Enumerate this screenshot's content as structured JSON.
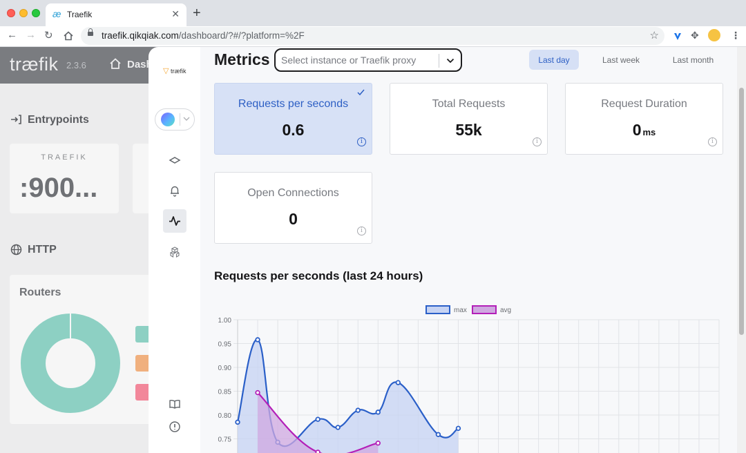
{
  "browser": {
    "tab_title": "Traefik",
    "url_host": "traefik.qikqiak.com",
    "url_path": "/dashboard/?#/?platform=%2F"
  },
  "background": {
    "logo": "træfik",
    "version": "2.3.6",
    "nav_label": "Dash",
    "entrypoints_label": "Entrypoints",
    "entry_card_title": "TRAEFIK",
    "entry_card_value": ":900...",
    "http_label": "HTTP",
    "routers_label": "Routers"
  },
  "metrics": {
    "title": "Metrics",
    "select_placeholder": "Select instance or Traefik proxy",
    "periods": [
      "Last day",
      "Last week",
      "Last month"
    ],
    "active_period": "Last day",
    "cards": [
      {
        "label": "Requests per seconds",
        "value": "0.6",
        "unit": ""
      },
      {
        "label": "Total Requests",
        "value": "55k",
        "unit": ""
      },
      {
        "label": "Request Duration",
        "value": "0",
        "unit": "ms"
      },
      {
        "label": "Open Connections",
        "value": "0",
        "unit": ""
      }
    ],
    "chart_title": "Requests per seconds (last 24 hours)"
  },
  "chart_data": {
    "type": "area",
    "title": "Requests per seconds (last 24 hours)",
    "xlabel": "",
    "ylabel": "",
    "ylim": [
      0.72,
      1.0
    ],
    "yticks": [
      1.0,
      0.95,
      0.9,
      0.85,
      0.8,
      0.75
    ],
    "grid": true,
    "legend_position": "top-center",
    "series": [
      {
        "name": "max",
        "color": "#2a5fc8",
        "fill": "#c6d3f3",
        "x": [
          0,
          1,
          2,
          4,
          5,
          6,
          7,
          8,
          10,
          11
        ],
        "values": [
          0.785,
          0.958,
          0.743,
          0.791,
          0.774,
          0.81,
          0.806,
          0.868,
          0.759,
          0.772
        ]
      },
      {
        "name": "avg",
        "color": "#b31fb8",
        "fill": "#cfa8e0",
        "x": [
          1,
          4,
          7
        ],
        "values": [
          0.847,
          0.722,
          0.741
        ]
      }
    ],
    "x_count": 24
  }
}
